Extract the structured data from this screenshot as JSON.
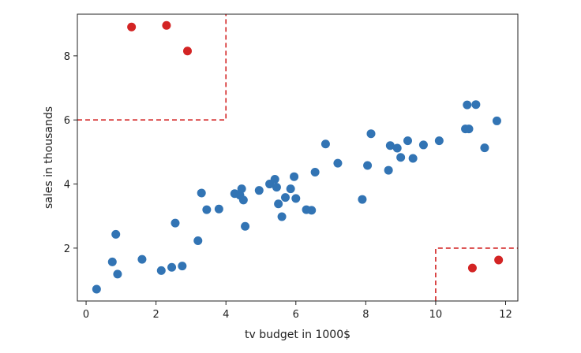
{
  "chart_data": {
    "type": "scatter",
    "title": "",
    "xlabel": "tv budget in 1000$",
    "ylabel": "sales in thousands",
    "xlim": [
      -0.25,
      12.35
    ],
    "ylim": [
      0.35,
      9.3
    ],
    "xticks": [
      0,
      2,
      4,
      6,
      8,
      10,
      12
    ],
    "yticks": [
      2,
      4,
      6,
      8
    ],
    "xtick_labels": [
      "0",
      "2",
      "4",
      "6",
      "8",
      "10",
      "12"
    ],
    "ytick_labels": [
      "2",
      "4",
      "6",
      "8"
    ],
    "grid": false,
    "colors": {
      "normal": "#3274b4",
      "outlier": "#d32424",
      "region": "#d32424"
    },
    "series": [
      {
        "kind": "normal",
        "points": [
          [
            0.3,
            0.72
          ],
          [
            0.75,
            1.57
          ],
          [
            0.85,
            2.43
          ],
          [
            0.9,
            1.19
          ],
          [
            1.6,
            1.65
          ],
          [
            2.15,
            1.3
          ],
          [
            2.45,
            1.4
          ],
          [
            2.55,
            2.78
          ],
          [
            2.75,
            1.44
          ],
          [
            3.2,
            2.23
          ],
          [
            3.3,
            3.72
          ],
          [
            3.45,
            3.2
          ],
          [
            3.8,
            3.22
          ],
          [
            4.25,
            3.7
          ],
          [
            4.4,
            3.65
          ],
          [
            4.45,
            3.85
          ],
          [
            4.5,
            3.5
          ],
          [
            4.55,
            2.68
          ],
          [
            4.95,
            3.8
          ],
          [
            5.25,
            4.0
          ],
          [
            5.4,
            4.15
          ],
          [
            5.45,
            3.9
          ],
          [
            5.5,
            3.38
          ],
          [
            5.6,
            2.98
          ],
          [
            5.7,
            3.58
          ],
          [
            5.85,
            3.85
          ],
          [
            5.95,
            4.23
          ],
          [
            6.0,
            3.55
          ],
          [
            6.3,
            3.2
          ],
          [
            6.45,
            3.18
          ],
          [
            6.55,
            4.37
          ],
          [
            6.85,
            5.25
          ],
          [
            7.2,
            4.65
          ],
          [
            7.9,
            3.52
          ],
          [
            8.05,
            4.58
          ],
          [
            8.15,
            5.57
          ],
          [
            8.65,
            4.43
          ],
          [
            8.7,
            5.2
          ],
          [
            8.9,
            5.12
          ],
          [
            9.0,
            4.83
          ],
          [
            9.2,
            5.35
          ],
          [
            9.35,
            4.8
          ],
          [
            9.65,
            5.22
          ],
          [
            10.1,
            5.35
          ],
          [
            10.85,
            5.72
          ],
          [
            10.9,
            6.47
          ],
          [
            10.95,
            5.72
          ],
          [
            11.15,
            6.48
          ],
          [
            11.4,
            5.13
          ],
          [
            11.75,
            5.97
          ]
        ]
      },
      {
        "kind": "outlier",
        "points": [
          [
            1.3,
            8.9
          ],
          [
            2.3,
            8.95
          ],
          [
            2.9,
            8.15
          ],
          [
            11.05,
            1.38
          ],
          [
            11.8,
            1.63
          ]
        ]
      }
    ],
    "annotations": [
      {
        "type": "dashed-region",
        "x": [
          -0.25,
          4.0
        ],
        "y": [
          6.0,
          9.3
        ]
      },
      {
        "type": "dashed-region",
        "x": [
          10.0,
          12.35
        ],
        "y": [
          0.35,
          2.0
        ]
      }
    ]
  }
}
